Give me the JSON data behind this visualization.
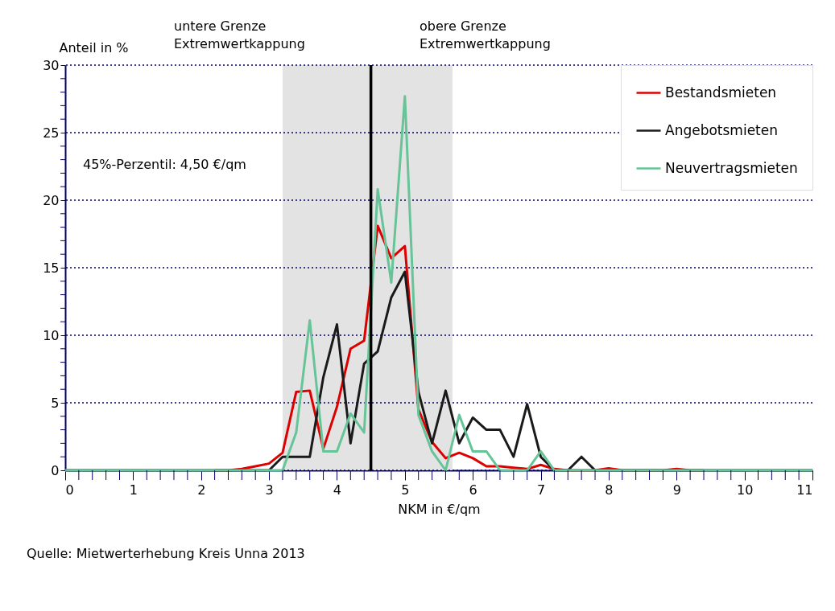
{
  "chart_data": {
    "type": "line",
    "xlabel": "NKM in €/qm",
    "ylabel": "Anteil in %",
    "x": [
      0,
      0.2,
      0.4,
      0.6,
      0.8,
      1,
      1.2,
      1.4,
      1.6,
      1.8,
      2,
      2.2,
      2.4,
      2.6,
      2.8,
      3,
      3.2,
      3.4,
      3.6,
      3.8,
      4,
      4.2,
      4.4,
      4.6,
      4.8,
      5,
      5.2,
      5.4,
      5.6,
      5.8,
      6,
      6.2,
      6.4,
      6.6,
      6.8,
      7,
      7.2,
      7.4,
      7.6,
      7.8,
      8,
      8.2,
      8.4,
      8.6,
      8.8,
      9,
      9.2,
      9.4,
      9.6,
      9.8,
      10,
      10.2,
      10.4,
      10.6,
      10.8,
      11
    ],
    "series": [
      {
        "name": "Bestandsmieten",
        "color": "#dd0000",
        "values": [
          null,
          null,
          null,
          null,
          null,
          null,
          null,
          null,
          null,
          null,
          null,
          0,
          0,
          0.1,
          0.3,
          0.5,
          1.3,
          5.8,
          5.9,
          1.6,
          4.7,
          9.0,
          9.6,
          18.1,
          15.7,
          16.6,
          4.5,
          2.1,
          0.9,
          1.3,
          0.9,
          0.3,
          0.3,
          0.2,
          0.1,
          0.4,
          0.1,
          0,
          0,
          0,
          0.15,
          0,
          0,
          0,
          0,
          0.1,
          0,
          0,
          null,
          null,
          null,
          null,
          null,
          null,
          null,
          null
        ]
      },
      {
        "name": "Angebotsmieten",
        "color": "#1a1a1a",
        "values": [
          0,
          0,
          0,
          0,
          0,
          0,
          0,
          0,
          0,
          0,
          0,
          0,
          0,
          0,
          0,
          0,
          1.0,
          1.0,
          1.0,
          6.9,
          10.8,
          2.0,
          7.9,
          8.8,
          12.8,
          14.7,
          5.8,
          2.0,
          5.9,
          2.0,
          3.9,
          3.0,
          3.0,
          1.0,
          4.9,
          1.0,
          0,
          0,
          1.0,
          0,
          0,
          0,
          0,
          0,
          0,
          0,
          0,
          0,
          0,
          0,
          0,
          0,
          0,
          0,
          0,
          0
        ]
      },
      {
        "name": "Neuvertragsmieten",
        "color": "#66c498",
        "values": [
          0,
          0,
          0,
          0,
          0,
          0,
          0,
          0,
          0,
          0,
          0,
          0,
          0,
          0,
          0,
          0,
          0,
          2.8,
          11.1,
          1.4,
          1.4,
          4.2,
          2.8,
          20.8,
          13.9,
          27.7,
          4.1,
          1.4,
          0,
          4.1,
          1.4,
          1.4,
          0,
          0,
          0,
          1.4,
          0,
          0,
          0,
          0,
          0,
          0,
          0,
          0,
          0,
          0,
          0,
          0,
          0,
          0,
          0,
          0,
          0,
          0,
          0,
          0
        ]
      }
    ],
    "xlim": [
      0,
      11
    ],
    "ylim": [
      0,
      30
    ],
    "xticks": [
      0,
      {
        "value": 0.2,
        "label": null
      },
      {
        "value": 0.4,
        "label": null
      },
      {
        "value": 0.6,
        "label": null
      },
      {
        "value": 0.8,
        "label": null
      },
      1,
      {
        "value": 1.2,
        "label": null
      },
      {
        "value": 1.4,
        "label": null
      },
      {
        "value": 1.6,
        "label": null
      },
      {
        "value": 1.8,
        "label": null
      },
      2,
      {
        "value": 2.2,
        "label": null
      },
      {
        "value": 2.4,
        "label": null
      },
      {
        "value": 2.6,
        "label": null
      },
      {
        "value": 2.8,
        "label": null
      },
      3,
      {
        "value": 3.2,
        "label": null
      },
      {
        "value": 3.4,
        "label": null
      },
      {
        "value": 3.6,
        "label": null
      },
      {
        "value": 3.8,
        "label": null
      },
      4,
      {
        "value": 4.2,
        "label": null
      },
      {
        "value": 4.4,
        "label": null
      },
      {
        "value": 4.6,
        "label": null
      },
      {
        "value": 4.8,
        "label": null
      },
      5,
      {
        "value": 5.2,
        "label": null
      },
      {
        "value": 5.4,
        "label": null
      },
      {
        "value": 5.6,
        "label": null
      },
      {
        "value": 5.8,
        "label": null
      },
      6,
      {
        "value": 6.2,
        "label": null
      },
      {
        "value": 6.4,
        "label": null
      },
      {
        "value": 6.6,
        "label": null
      },
      {
        "value": 6.8,
        "label": null
      },
      7,
      {
        "value": 7.2,
        "label": null
      },
      {
        "value": 7.4,
        "label": null
      },
      {
        "value": 7.6,
        "label": null
      },
      {
        "value": 7.8,
        "label": null
      },
      8,
      {
        "value": 8.2,
        "label": null
      },
      {
        "value": 8.4,
        "label": null
      },
      {
        "value": 8.6,
        "label": null
      },
      {
        "value": 8.8,
        "label": null
      },
      9,
      {
        "value": 9.2,
        "label": null
      },
      {
        "value": 9.4,
        "label": null
      },
      {
        "value": 9.6,
        "label": null
      },
      {
        "value": 9.8,
        "label": null
      },
      10,
      {
        "value": 10.2,
        "label": null
      },
      {
        "value": 10.4,
        "label": null
      },
      {
        "value": 10.6,
        "label": null
      },
      {
        "value": 10.8,
        "label": null
      },
      11
    ],
    "yticks": [
      0,
      {
        "value": 1,
        "label": null
      },
      {
        "value": 2,
        "label": null
      },
      {
        "value": 3,
        "label": null
      },
      {
        "value": 4,
        "label": null
      },
      5,
      {
        "value": 6,
        "label": null
      },
      {
        "value": 7,
        "label": null
      },
      {
        "value": 8,
        "label": null
      },
      {
        "value": 9,
        "label": null
      },
      10,
      {
        "value": 11,
        "label": null
      },
      {
        "value": 12,
        "label": null
      },
      {
        "value": 13,
        "label": null
      },
      {
        "value": 14,
        "label": null
      },
      15,
      {
        "value": 16,
        "label": null
      },
      {
        "value": 17,
        "label": null
      },
      {
        "value": 18,
        "label": null
      },
      {
        "value": 19,
        "label": null
      },
      20,
      {
        "value": 21,
        "label": null
      },
      {
        "value": 22,
        "label": null
      },
      {
        "value": 23,
        "label": null
      },
      {
        "value": 24,
        "label": null
      },
      25,
      {
        "value": 26,
        "label": null
      },
      {
        "value": 27,
        "label": null
      },
      {
        "value": 28,
        "label": null
      },
      {
        "value": 29,
        "label": null
      },
      30
    ],
    "grid": "y",
    "legend": "top right",
    "ref_lines": [
      {
        "axis": "x",
        "value": 4.5,
        "color": "#000000"
      }
    ],
    "bands": [
      {
        "axis": "x",
        "from": 3.2,
        "to": 5.7,
        "color": "#e3e3e3"
      }
    ],
    "annotations": [
      "untere Grenze\nExtremwertkappung",
      "obere Grenze\nExtremwertkappung",
      "45%-Perzentil: 4,50 €/qm",
      "Quelle: Mietwerterhebung Kreis Unna 2013"
    ]
  }
}
